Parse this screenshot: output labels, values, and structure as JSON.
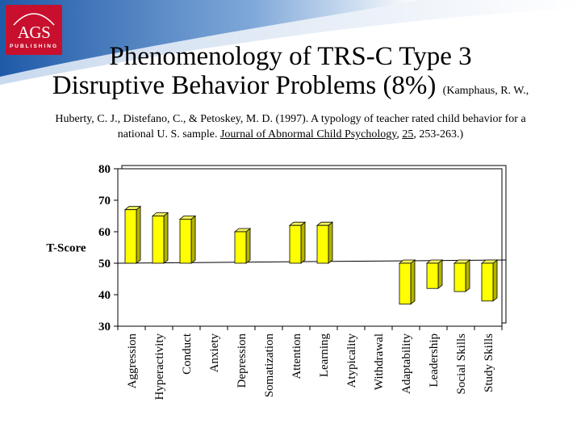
{
  "logo": {
    "text": "AGS",
    "subtext": "PUBLISHING"
  },
  "title": {
    "line1": "Phenomenology of TRS-C Type 3",
    "line2": "Disruptive Behavior Problems (8%)",
    "cite_inline": "(Kamphaus, R. W.,",
    "cite_line1": "Huberty, C. J., Distefano, C., & Petoskey, M. D. (1997).  A typology of teacher rated child behavior for a",
    "cite_line2_pre": "national U. S. sample. ",
    "journal": "Journal of Abnormal Child Psychology",
    "comma": ", ",
    "volume": "25",
    "pages": ", 253-263.)"
  },
  "colors": {
    "bar": "#ffff00",
    "bar_side": "#b3b300",
    "bar_top": "#f2f25c",
    "swoosh": "#1f5aa8"
  },
  "chart_data": {
    "type": "bar",
    "title": "",
    "xlabel": "",
    "ylabel": "T-Score",
    "ylim": [
      30,
      80
    ],
    "yticks": [
      30,
      40,
      50,
      60,
      70,
      80
    ],
    "baseline": 50,
    "grid": false,
    "categories": [
      "Aggression",
      "Hyperactivity",
      "Conduct",
      "Anxiety",
      "Depression",
      "Somatization",
      "Attention",
      "Learning",
      "Atypicality",
      "Withdrawal",
      "Adaptability",
      "Leadership",
      "Social Skills",
      "Study Skills"
    ],
    "values": [
      67,
      65,
      64,
      50,
      60,
      50,
      62,
      62,
      50,
      50,
      37,
      42,
      41,
      38
    ]
  }
}
